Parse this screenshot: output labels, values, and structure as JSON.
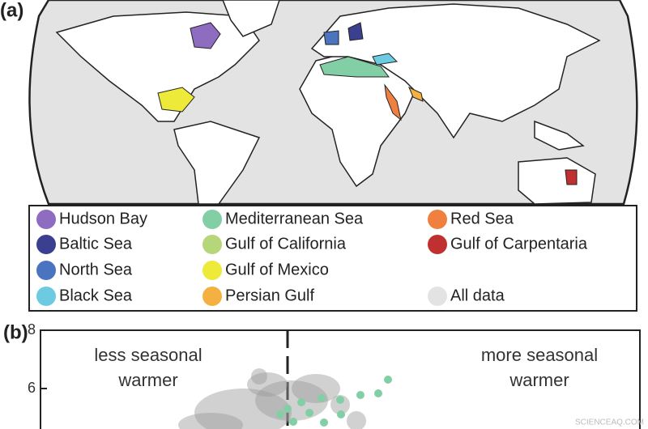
{
  "panels": {
    "a": "(a)",
    "b": "(b)"
  },
  "legend": [
    {
      "label": "Hudson Bay",
      "color": "#8e6cc0"
    },
    {
      "label": "Baltic Sea",
      "color": "#3a3f8f"
    },
    {
      "label": "North Sea",
      "color": "#4a74c0"
    },
    {
      "label": "Black Sea",
      "color": "#6ccbe0"
    },
    {
      "label": "Mediterranean Sea",
      "color": "#82cfa5"
    },
    {
      "label": "Gulf of California",
      "color": "#b6d67a"
    },
    {
      "label": "Gulf of Mexico",
      "color": "#eeea3a"
    },
    {
      "label": "Persian Gulf",
      "color": "#f4b040"
    },
    {
      "label": "Red Sea",
      "color": "#f08040"
    },
    {
      "label": "Gulf of Carpentaria",
      "color": "#c03030"
    },
    {
      "label": "All data",
      "color": "#e3e3e3"
    }
  ],
  "chart_data": {
    "type": "scatter",
    "ylim": [
      4.6,
      8
    ],
    "yticks": [
      6,
      8
    ],
    "annotations": [
      "less seasonal",
      "warmer",
      "more seasonal",
      "warmer"
    ]
  },
  "watermark": "SCIENCEAQ.COM"
}
